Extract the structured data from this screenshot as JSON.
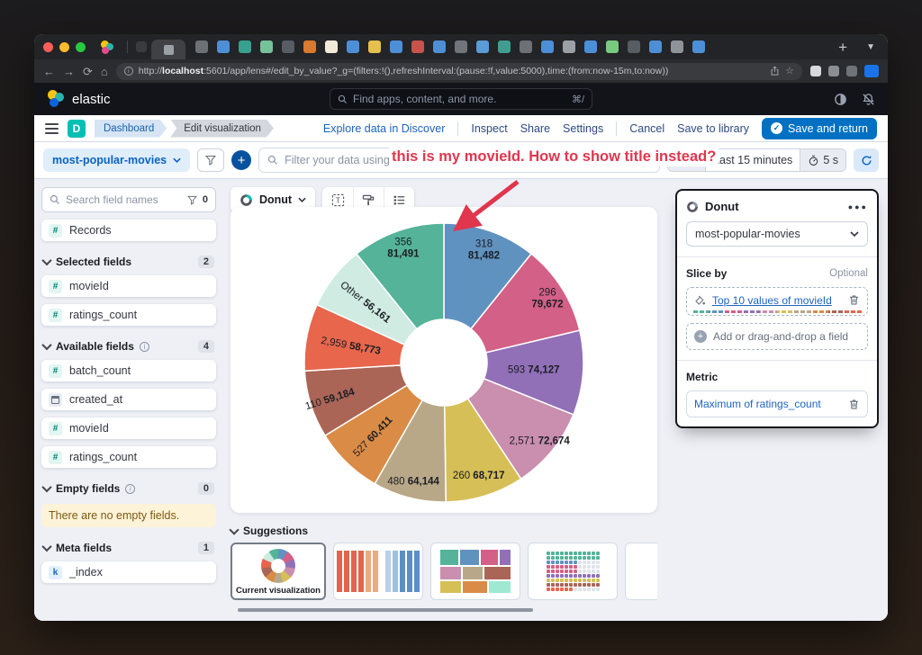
{
  "browser": {
    "traffic_lights": [
      "#ff5f57",
      "#febc2e",
      "#28c840"
    ],
    "tab_favicon_colors": [
      "#6d7075",
      "#4d8fd6",
      "#37a08e",
      "#76c29a",
      "#585c63",
      "#d97a2e",
      "#f2ead8",
      "#4d8fd6",
      "#e4c04f",
      "#4d8fd6",
      "#c9524a",
      "#4d8fd6",
      "#70747b",
      "#5a9bd8",
      "#3f9e8f",
      "#6d7075",
      "#4d8fd6",
      "#9aa0a6",
      "#4d8fd6",
      "#79c97e",
      "#585c63",
      "#4d8fd6",
      "#8f939a",
      "#4d8fd6"
    ],
    "new_tab": "+",
    "url": {
      "scheme": "http://",
      "host": "localhost",
      "rest": ":5601/app/lens#/edit_by_value?_g=(filters:!(),refreshInterval:(pause:!f,value:5000),time:(from:now-15m,to:now))"
    }
  },
  "elastic_header": {
    "brand": "elastic",
    "search_placeholder": "Find apps, content, and more.",
    "search_shortcut": "⌘/"
  },
  "nav": {
    "app_initial": "D",
    "breadcrumbs": [
      "Dashboard",
      "Edit visualization"
    ],
    "explore": "Explore data in Discover",
    "inspect": "Inspect",
    "share": "Share",
    "settings": "Settings",
    "cancel": "Cancel",
    "save_to_library": "Save to library",
    "save_and_return": "Save and return"
  },
  "querybar": {
    "index_pattern": "most-popular-movies",
    "kql_placeholder": "Filter your data using KQL syntax",
    "time_range": "Last 15 minutes",
    "refresh_interval": "5 s"
  },
  "annotation": {
    "text": "this is my movieId. How to show title instead?",
    "color": "#e0364e"
  },
  "sidebar": {
    "search_placeholder": "Search field names",
    "filter_count": "0",
    "records": "Records",
    "sections": [
      {
        "label": "Selected fields",
        "badge": "2",
        "info": false,
        "items": [
          {
            "name": "movieId",
            "type": "number"
          },
          {
            "name": "ratings_count",
            "type": "number"
          }
        ]
      },
      {
        "label": "Available fields",
        "badge": "4",
        "info": true,
        "items": [
          {
            "name": "batch_count",
            "type": "number"
          },
          {
            "name": "created_at",
            "type": "date"
          },
          {
            "name": "movieId",
            "type": "number"
          },
          {
            "name": "ratings_count",
            "type": "number"
          }
        ]
      },
      {
        "label": "Empty fields",
        "badge": "0",
        "info": true,
        "items": [],
        "notice": "There are no empty fields."
      },
      {
        "label": "Meta fields",
        "badge": "1",
        "info": false,
        "items": [
          {
            "name": "_index",
            "type": "keyword"
          }
        ]
      }
    ]
  },
  "chart_toolbar": {
    "type_label": "Donut"
  },
  "layer_panel": {
    "title": "Donut",
    "data_view": "most-popular-movies",
    "slice_by_label": "Slice by",
    "optional": "Optional",
    "slice_dimension": "Top 10 values of movieId",
    "add_field": "Add or drag-and-drop a field",
    "metric_label": "Metric",
    "metric_dimension": "Maximum of ratings_count"
  },
  "suggestions": {
    "label": "Suggestions",
    "current_label": "Current visualization"
  },
  "chart_data": {
    "type": "pie",
    "subtype": "donut",
    "slice_by": "Top 10 values of movieId",
    "metric": "Maximum of ratings_count",
    "legend": "off",
    "start_angle_deg": 0,
    "direction": "clockwise",
    "slices": [
      {
        "key": "318",
        "value": 81482,
        "display": "81,482",
        "color": "#6092C0",
        "label_r": 134,
        "two_line": true
      },
      {
        "key": "296",
        "value": 79672,
        "display": "79,672",
        "color": "#D36086",
        "label_r": 136,
        "two_line": true
      },
      {
        "key": "593",
        "value": 74127,
        "display": "74,127",
        "color": "#9170B8",
        "label_r": 100
      },
      {
        "key": "2,571",
        "value": 72674,
        "display": "72,674",
        "color": "#CA8EAE",
        "label_r": 137
      },
      {
        "key": "260",
        "value": 68717,
        "display": "68,717",
        "color": "#D6BF57",
        "label_r": 131
      },
      {
        "key": "480",
        "value": 64144,
        "display": "64,144",
        "color": "#B9A888",
        "label_r": 136
      },
      {
        "key": "527",
        "value": 60411,
        "display": "60,411",
        "color": "#DA8B45",
        "label_r": 114
      },
      {
        "key": "110",
        "value": 59184,
        "display": "59,184",
        "color": "#AA6556",
        "label_r": 133
      },
      {
        "key": "2,959",
        "value": 58773,
        "display": "58,773",
        "color": "#E7664C",
        "label_r": 105
      },
      {
        "key": "Other",
        "value": 56161,
        "display": "56,161",
        "color": "#CFEBE2",
        "label_r": 110
      },
      {
        "key": "356",
        "value": 81491,
        "display": "81,491",
        "color": "#54B399",
        "label_r": 136,
        "two_line": true
      }
    ]
  }
}
